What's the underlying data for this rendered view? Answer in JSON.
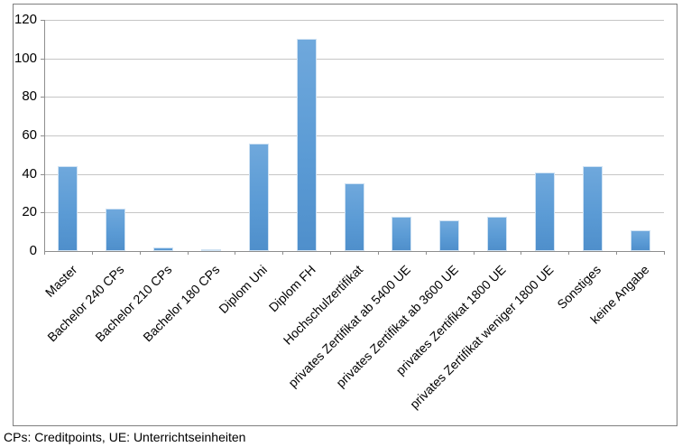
{
  "footer_note": "CPs: Creditpoints, UE: Unterrichtseinheiten",
  "colors": {
    "bar_fill": "#5b9bd5",
    "bar_fill_top": "#6fa8dc",
    "bar_fill_bottom": "#4f8fcb",
    "bar_border": "#cfe2f3",
    "gridline": "#c6c6c6",
    "axis": "#8e8e8e",
    "frame_border": "#7f7f7f",
    "text": "#000000"
  },
  "chart_data": {
    "type": "bar",
    "title": "",
    "xlabel": "",
    "ylabel": "",
    "categories": [
      "Master",
      "Bachelor 240 CPs",
      "Bachelor 210 CPs",
      "Bachelor 180 CPs",
      "Diplom Uni",
      "Diplom FH",
      "Hochschulzertifikat",
      "privates Zertifikat ab 5400 UE",
      "privates Zertifikat ab 3600 UE",
      "privates Zertifikat 1800 UE",
      "privates Zertifikat weniger 1800 UE",
      "Sonstiges",
      "keine Angabe"
    ],
    "values": [
      44,
      22,
      2,
      1,
      56,
      110,
      35,
      18,
      16,
      18,
      41,
      44,
      11
    ],
    "ylim": [
      0,
      120
    ],
    "yticks": [
      0,
      20,
      40,
      60,
      80,
      100,
      120
    ],
    "grid": true,
    "legend": false,
    "series_color": "#5b9bd5",
    "note": "CPs: Creditpoints, UE: Unterrichtseinheiten"
  }
}
